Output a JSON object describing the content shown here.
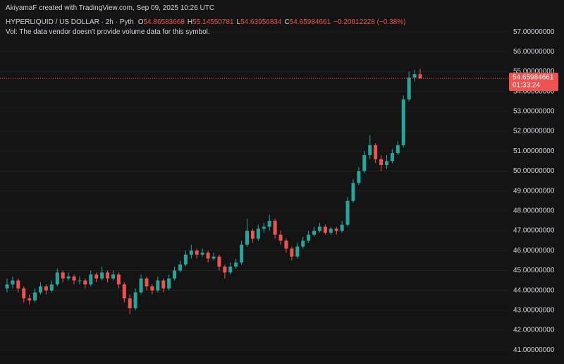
{
  "chart_data": {
    "type": "candlestick",
    "credit": "AkiyamaF created with TradingView.com, Sep 09, 2025 10:26 UTC",
    "symbol": "HYPERLIQUID / US DOLLAR · 2h · Pyth",
    "ohlc_labels": [
      "O",
      "H",
      "L",
      "C"
    ],
    "change": "−0.20812228 (−0.38%)",
    "volume_note": "Vol: The data vendor doesn't provide volume data for this symbol.",
    "countdown": "01:33:24",
    "up_color": "#26a69a",
    "down_color": "#ef5350",
    "ylim": [
      40.3,
      58.6
    ],
    "yticks": [
      {
        "value": 41,
        "label": "41.00000000"
      },
      {
        "value": 42,
        "label": "42.00000000"
      },
      {
        "value": 43,
        "label": "43.00000000"
      },
      {
        "value": 44,
        "label": "44.00000000"
      },
      {
        "value": 45,
        "label": "45.00000000"
      },
      {
        "value": 46,
        "label": "46.00000000"
      },
      {
        "value": 47,
        "label": "47.00000000"
      },
      {
        "value": 48,
        "label": "48.00000000"
      },
      {
        "value": 49,
        "label": "49.00000000"
      },
      {
        "value": 50,
        "label": "50.00000000"
      },
      {
        "value": 51,
        "label": "51.00000000"
      },
      {
        "value": 52,
        "label": "52.00000000"
      },
      {
        "value": 53,
        "label": "53.00000000"
      },
      {
        "value": 54,
        "label": "54.00000000"
      },
      {
        "value": 55,
        "label": "55.00000000"
      },
      {
        "value": 56,
        "label": "56.00000000"
      },
      {
        "value": 57,
        "label": "57.00000000"
      }
    ],
    "grid": true,
    "ohlc": [
      [
        44.1,
        44.6,
        43.9,
        44.3
      ],
      [
        44.3,
        44.7,
        44.1,
        44.5
      ],
      [
        44.5,
        44.6,
        43.9,
        44.1
      ],
      [
        44.1,
        44.2,
        43.4,
        43.6
      ],
      [
        43.6,
        43.8,
        43.3,
        43.5
      ],
      [
        43.5,
        44.1,
        43.4,
        43.9
      ],
      [
        43.9,
        44.4,
        43.8,
        44.2
      ],
      [
        44.2,
        44.3,
        43.8,
        44.0
      ],
      [
        44.0,
        44.5,
        43.9,
        44.3
      ],
      [
        44.3,
        45.1,
        44.2,
        44.9
      ],
      [
        44.9,
        45.0,
        44.4,
        44.6
      ],
      [
        44.6,
        44.9,
        44.5,
        44.7
      ],
      [
        44.7,
        44.8,
        44.3,
        44.5
      ],
      [
        44.5,
        44.7,
        44.3,
        44.5
      ],
      [
        44.5,
        44.6,
        44.1,
        44.3
      ],
      [
        44.3,
        45.0,
        44.2,
        44.8
      ],
      [
        44.8,
        44.9,
        44.4,
        44.6
      ],
      [
        44.6,
        45.2,
        44.5,
        44.9
      ],
      [
        44.9,
        45.0,
        44.4,
        44.6
      ],
      [
        44.6,
        45.0,
        44.5,
        44.8
      ],
      [
        44.8,
        44.9,
        44.1,
        44.3
      ],
      [
        44.3,
        44.4,
        43.4,
        43.6
      ],
      [
        43.6,
        43.8,
        42.8,
        43.1
      ],
      [
        43.1,
        44.1,
        43.0,
        43.9
      ],
      [
        43.9,
        44.8,
        43.8,
        44.6
      ],
      [
        44.6,
        44.7,
        44.0,
        44.2
      ],
      [
        44.2,
        44.3,
        43.8,
        44.0
      ],
      [
        44.0,
        44.7,
        43.9,
        44.5
      ],
      [
        44.5,
        44.6,
        43.9,
        44.1
      ],
      [
        44.1,
        44.8,
        44.0,
        44.6
      ],
      [
        44.6,
        45.2,
        44.5,
        45.0
      ],
      [
        45.0,
        45.5,
        44.9,
        45.3
      ],
      [
        45.3,
        46.0,
        45.2,
        45.8
      ],
      [
        45.8,
        46.3,
        45.6,
        46.0
      ],
      [
        46.0,
        46.1,
        45.6,
        45.8
      ],
      [
        45.8,
        46.1,
        45.7,
        45.9
      ],
      [
        45.9,
        46.0,
        45.4,
        45.6
      ],
      [
        45.6,
        45.9,
        45.5,
        45.7
      ],
      [
        45.7,
        45.8,
        45.0,
        45.2
      ],
      [
        45.2,
        45.3,
        44.6,
        44.9
      ],
      [
        44.9,
        45.4,
        44.8,
        45.2
      ],
      [
        45.2,
        45.6,
        45.1,
        45.4
      ],
      [
        45.4,
        46.5,
        45.3,
        46.3
      ],
      [
        46.3,
        47.6,
        46.2,
        47.0
      ],
      [
        47.0,
        47.1,
        46.4,
        46.6
      ],
      [
        46.6,
        47.3,
        46.5,
        47.1
      ],
      [
        47.1,
        47.4,
        46.9,
        47.2
      ],
      [
        47.2,
        47.8,
        47.0,
        47.5
      ],
      [
        47.5,
        47.6,
        46.6,
        46.8
      ],
      [
        46.8,
        47.0,
        46.3,
        46.5
      ],
      [
        46.5,
        46.6,
        45.9,
        46.1
      ],
      [
        46.1,
        46.2,
        45.5,
        45.7
      ],
      [
        45.7,
        46.4,
        45.6,
        46.2
      ],
      [
        46.2,
        46.7,
        46.1,
        46.5
      ],
      [
        46.5,
        47.0,
        46.4,
        46.8
      ],
      [
        46.8,
        47.2,
        46.7,
        47.0
      ],
      [
        47.0,
        47.4,
        46.9,
        47.2
      ],
      [
        47.2,
        47.3,
        46.8,
        46.9
      ],
      [
        46.9,
        47.2,
        46.8,
        47.1
      ],
      [
        47.1,
        47.2,
        46.8,
        47.0
      ],
      [
        47.0,
        47.5,
        46.9,
        47.3
      ],
      [
        47.3,
        48.7,
        47.2,
        48.5
      ],
      [
        48.5,
        49.6,
        48.4,
        49.4
      ],
      [
        49.4,
        50.2,
        49.3,
        50.0
      ],
      [
        50.0,
        51.0,
        49.9,
        50.8
      ],
      [
        50.8,
        51.8,
        50.6,
        51.3
      ],
      [
        51.3,
        51.4,
        50.4,
        50.6
      ],
      [
        50.6,
        50.8,
        50.0,
        50.3
      ],
      [
        50.3,
        50.8,
        50.1,
        50.5
      ],
      [
        50.5,
        51.1,
        50.4,
        50.9
      ],
      [
        50.9,
        51.5,
        50.8,
        51.3
      ],
      [
        51.3,
        53.8,
        51.2,
        53.6
      ],
      [
        53.6,
        55.0,
        53.5,
        54.7
      ],
      [
        54.7,
        55.1,
        54.5,
        54.87
      ],
      [
        54.86583668,
        55.14550781,
        54.63956834,
        54.65984661
      ]
    ]
  }
}
